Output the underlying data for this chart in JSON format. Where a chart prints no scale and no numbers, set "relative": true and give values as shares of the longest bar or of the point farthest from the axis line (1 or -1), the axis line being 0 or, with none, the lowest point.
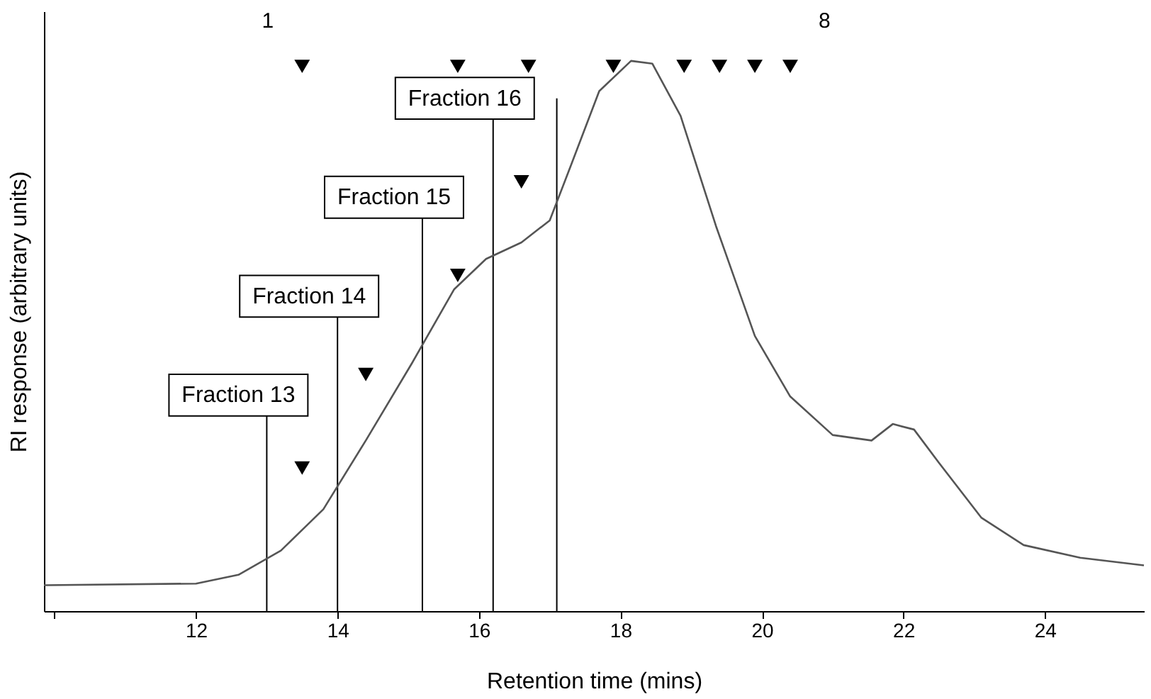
{
  "chart_data": {
    "type": "line",
    "relative": true,
    "xlabel": "Retention time (mins)",
    "ylabel": "RI response (arbitrary units)",
    "xlim": [
      9.85,
      25.4
    ],
    "xticks": [
      {
        "value": 10,
        "label": null
      },
      12,
      14,
      16,
      18,
      20,
      22,
      24
    ],
    "tick_labels": "x",
    "grid": false,
    "series": [
      {
        "color": "#555555",
        "line_style": "solid",
        "x": [
          9.85,
          12.0,
          12.6,
          13.2,
          13.8,
          14.4,
          15.05,
          15.65,
          16.1,
          16.6,
          17.0,
          17.3,
          17.7,
          18.15,
          18.45,
          18.85,
          19.35,
          19.9,
          20.4,
          21.0,
          21.55,
          21.85,
          22.15,
          22.5,
          23.1,
          23.7,
          24.5,
          25.4
        ],
        "values": [
          0.047,
          0.05,
          0.066,
          0.11,
          0.185,
          0.31,
          0.45,
          0.585,
          0.64,
          0.67,
          0.71,
          0.81,
          0.945,
          1.0,
          0.995,
          0.9,
          0.7,
          0.5,
          0.39,
          0.32,
          0.31,
          0.34,
          0.33,
          0.27,
          0.17,
          0.12,
          0.097,
          0.083
        ]
      },
      {
        "type": "scatter",
        "color": "#000000",
        "marker": "triangle",
        "x": [
          13.5,
          15.7,
          16.7,
          17.9,
          18.9,
          19.4,
          19.9,
          20.4
        ],
        "values": [
          0.99,
          0.99,
          0.99,
          0.99,
          0.99,
          0.99,
          0.99,
          0.99
        ]
      },
      {
        "type": "scatter",
        "color": "#000000",
        "marker": "triangle",
        "x": [
          13.5,
          14.4,
          15.7,
          16.6
        ],
        "values": [
          0.26,
          0.43,
          0.61,
          0.78
        ]
      }
    ],
    "ref_lines": [
      {
        "axis": "x",
        "value": 13.0,
        "color": "#000000",
        "label": "Fraction 13"
      },
      {
        "axis": "x",
        "value": 14.0,
        "color": "#000000",
        "label": "Fraction 14"
      },
      {
        "axis": "x",
        "value": 15.2,
        "color": "#000000",
        "label": "Fraction 15"
      },
      {
        "axis": "x",
        "value": 16.2,
        "color": "#000000",
        "label": "Fraction 16"
      },
      {
        "axis": "x",
        "value": 17.1,
        "color": "#000000"
      }
    ],
    "annotations": [
      "1",
      "8"
    ]
  }
}
